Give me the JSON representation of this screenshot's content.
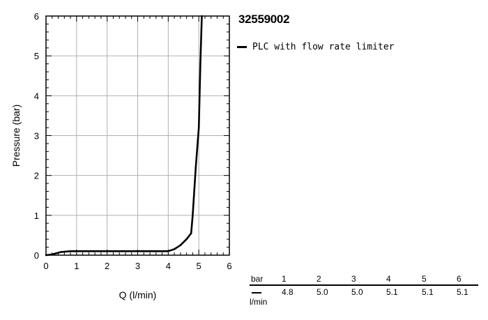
{
  "title": "32559002",
  "legend": {
    "label": "PLC with flow rate limiter"
  },
  "chart_data": {
    "type": "line",
    "xlabel": "Q (l/min)",
    "ylabel": "Pressure (bar)",
    "xlim": [
      0,
      6
    ],
    "ylim": [
      0,
      6
    ],
    "xticks": [
      "0",
      "1",
      "2",
      "3",
      "4",
      "5",
      "6"
    ],
    "yticks": [
      "0",
      "1",
      "2",
      "3",
      "4",
      "5",
      "6"
    ],
    "grid": true,
    "series": [
      {
        "name": "PLC with flow rate limiter",
        "x": [
          0,
          0.2,
          0.5,
          0.8,
          1.0,
          2.0,
          3.0,
          4.0,
          4.2,
          4.4,
          4.6,
          4.75,
          4.8,
          4.9,
          5.0,
          5.05,
          5.1
        ],
        "y": [
          0,
          0.02,
          0.08,
          0.1,
          0.1,
          0.1,
          0.1,
          0.1,
          0.15,
          0.25,
          0.4,
          0.55,
          1.0,
          2.2,
          3.2,
          4.8,
          6.0
        ]
      }
    ]
  },
  "table": {
    "top_label": "bar",
    "bottom_label": "l/min",
    "bar_values": [
      "1",
      "2",
      "3",
      "4",
      "5",
      "6"
    ],
    "flow_values": [
      "4.8",
      "5.0",
      "5.0",
      "5.1",
      "5.1",
      "5.1"
    ]
  }
}
